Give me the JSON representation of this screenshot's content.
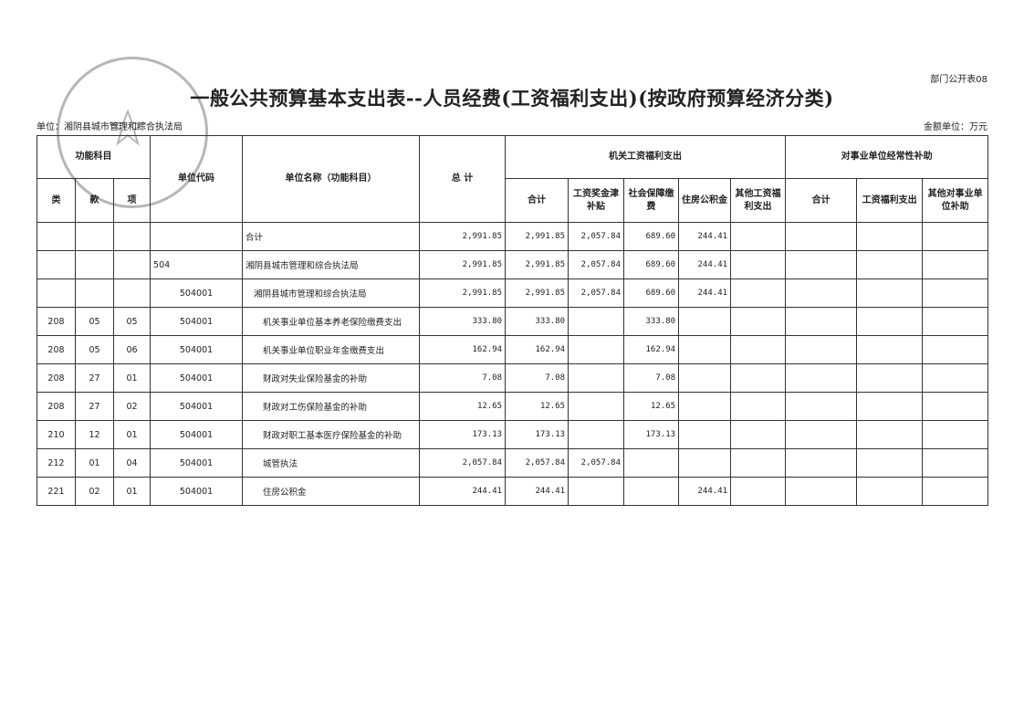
{
  "header": {
    "code": "部门公开表08",
    "title": "一般公共预算基本支出表--人员经费(工资福利支出)(按政府预算经济分类)",
    "unit": "单位：湘阴县城市管理和综合执法局",
    "amount_unit": "金额单位：万元"
  },
  "table": {
    "header_top": [
      "功能科目",
      "单位代码",
      "单位名称（功能科目）",
      "总 计",
      "机关工资福利支出",
      "对事业单位经常性补助"
    ],
    "header_sub": [
      "类",
      "款",
      "项",
      "合计",
      "工资奖金津补贴",
      "社会保障缴费",
      "住房公积金",
      "其他工资福利支出",
      "合计",
      "工资福利支出",
      "其他对事业单位补助"
    ],
    "rows": [
      [
        null,
        null,
        null,
        null,
        "合计",
        "2,991.85",
        "2,991.85",
        "2,057.84",
        "689.60",
        "244.41",
        null,
        null,
        null,
        null
      ],
      [
        null,
        null,
        null,
        "504",
        "湘阴县城市管理和综合执法局",
        "2,991.85",
        "2,991.85",
        "2,057.84",
        "689.60",
        "244.41",
        null,
        null,
        null,
        null
      ],
      [
        null,
        null,
        null,
        "504001",
        "湘阴县城市管理和综合执法局",
        "2,991.85",
        "2,991.85",
        "2,057.84",
        "689.60",
        "244.41",
        null,
        null,
        null,
        null
      ],
      [
        "208",
        "05",
        "05",
        "504001",
        "机关事业单位基本养老保险缴费支出",
        "333.80",
        "333.80",
        null,
        "333.80",
        null,
        null,
        null,
        null,
        null
      ],
      [
        "208",
        "05",
        "06",
        "504001",
        "机关事业单位职业年金缴费支出",
        "162.94",
        "162.94",
        null,
        "162.94",
        null,
        null,
        null,
        null,
        null
      ],
      [
        "208",
        "27",
        "01",
        "504001",
        "财政对失业保险基金的补助",
        "7.08",
        "7.08",
        null,
        "7.08",
        null,
        null,
        null,
        null,
        null
      ],
      [
        "208",
        "27",
        "02",
        "504001",
        "财政对工伤保险基金的补助",
        "12.65",
        "12.65",
        null,
        "12.65",
        null,
        null,
        null,
        null,
        null
      ],
      [
        "210",
        "12",
        "01",
        "504001",
        "财政对职工基本医疗保险基金的补助",
        "173.13",
        "173.13",
        null,
        "173.13",
        null,
        null,
        null,
        null,
        null
      ],
      [
        "212",
        "01",
        "04",
        "504001",
        "城管执法",
        "2,057.84",
        "2,057.84",
        "2,057.84",
        null,
        null,
        null,
        null,
        null,
        null
      ],
      [
        "221",
        "02",
        "01",
        "504001",
        "住房公积金",
        "244.41",
        "244.41",
        null,
        null,
        "244.41",
        null,
        null,
        null,
        null
      ]
    ]
  }
}
